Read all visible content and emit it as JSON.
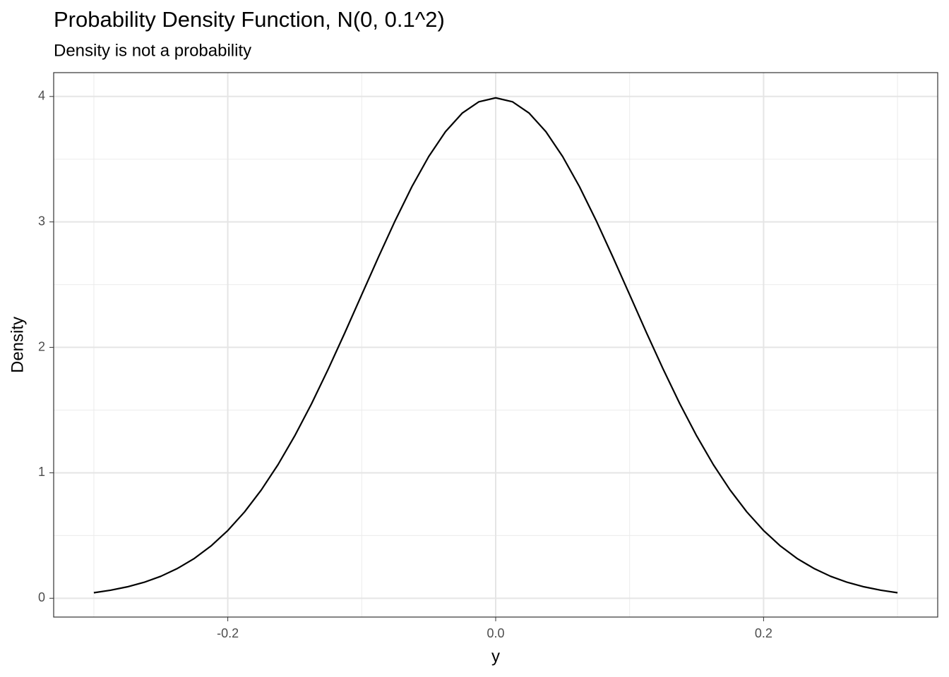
{
  "chart_data": {
    "type": "line",
    "title": "Probability Density Function, N(0, 0.1^2)",
    "subtitle": "Density is not a probability",
    "x_label": "y",
    "y_label": "Density",
    "x": [
      -0.3,
      -0.2875,
      -0.275,
      -0.2625,
      -0.25,
      -0.2375,
      -0.225,
      -0.2125,
      -0.2,
      -0.1875,
      -0.175,
      -0.1625,
      -0.15,
      -0.1375,
      -0.125,
      -0.1125,
      -0.1,
      -0.0875,
      -0.075,
      -0.0625,
      -0.05,
      -0.0375,
      -0.025,
      -0.0125,
      0,
      0.0125,
      0.025,
      0.0375,
      0.05,
      0.0625,
      0.075,
      0.0875,
      0.1,
      0.1125,
      0.125,
      0.1375,
      0.15,
      0.1625,
      0.175,
      0.1875,
      0.2,
      0.2125,
      0.225,
      0.2375,
      0.25,
      0.2625,
      0.275,
      0.2875,
      0.3
    ],
    "series": [
      {
        "name": "density",
        "color": "#000000",
        "values": [
          0.044,
          0.064,
          0.091,
          0.127,
          0.175,
          0.238,
          0.317,
          0.417,
          0.54,
          0.688,
          0.863,
          1.065,
          1.295,
          1.55,
          1.827,
          2.119,
          2.42,
          2.72,
          3.011,
          3.282,
          3.521,
          3.719,
          3.867,
          3.958,
          3.989,
          3.958,
          3.867,
          3.719,
          3.521,
          3.282,
          3.011,
          2.72,
          2.42,
          2.119,
          1.827,
          1.55,
          1.295,
          1.065,
          0.863,
          0.688,
          0.54,
          0.417,
          0.317,
          0.238,
          0.175,
          0.127,
          0.091,
          0.064,
          0.044
        ]
      }
    ],
    "xlim": [
      -0.33,
      0.33
    ],
    "ylim": [
      -0.15,
      4.19
    ],
    "xticks": [
      -0.2,
      {
        "value": 0,
        "label": "0.0"
      },
      0.2
    ],
    "yticks": [
      0,
      1,
      2,
      3,
      4
    ],
    "xminor": [
      -0.3,
      -0.1,
      0.1,
      0.3
    ],
    "yminor": [
      0.5,
      1.5,
      2.5,
      3.5
    ],
    "grid": true
  }
}
